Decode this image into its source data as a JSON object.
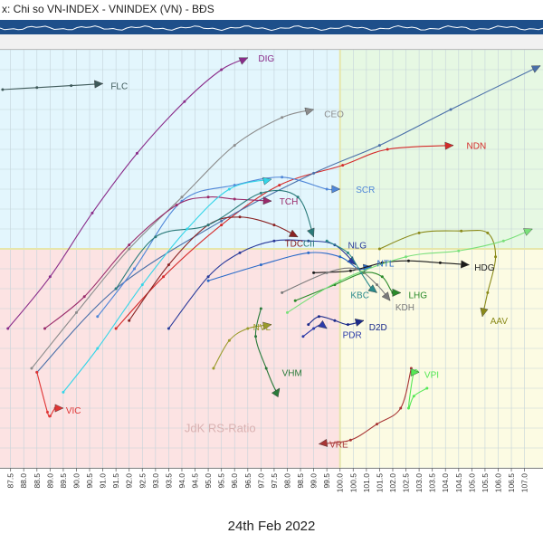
{
  "window": {
    "title": "x:  Chi so VN-INDEX - VNINDEX (VN) - BĐS"
  },
  "date_label": "24th Feb 2022",
  "watermark": "JdK RS-Ratio",
  "colors": {
    "strip_bg": "#1e4f8a",
    "strip_line": "#ffffff",
    "q_improving": "#e3f6fd",
    "q_leading": "#e6f8e3",
    "q_lagging": "#fce3e3",
    "q_weakening": "#fcfbe3",
    "grid": "#c4d3da",
    "centerline": "#e6e6aa"
  },
  "chart_data": {
    "type": "scatter",
    "subtype": "relative-rotation-graph",
    "title": "Chi so VN-INDEX - VNINDEX (VN) - BĐS",
    "xlabel": "JdK RS-Ratio",
    "ylabel": "",
    "xlim": [
      87.1,
      107.7
    ],
    "ylim": [
      94.5,
      105.0
    ],
    "center": [
      100.0,
      100.0
    ],
    "x_ticks": [
      87.5,
      88.0,
      88.5,
      89.0,
      89.5,
      90.0,
      90.5,
      91.0,
      91.5,
      92.0,
      92.5,
      93.0,
      93.5,
      94.0,
      94.5,
      95.0,
      95.5,
      96.0,
      96.5,
      97.0,
      97.5,
      98.0,
      98.5,
      99.0,
      99.5,
      100.0,
      100.5,
      101.0,
      101.5,
      102.0,
      102.5,
      103.0,
      103.5,
      104.0,
      104.5,
      105.0,
      105.5,
      106.0,
      106.5,
      107.0
    ],
    "x_tick_labels": [
      "87.5",
      "88.0",
      "88.5",
      "89.0",
      "89.5",
      "90.0",
      "90.5",
      "91.0",
      "91.5",
      "92.0",
      "92.5",
      "93.0",
      "93.5",
      "94.0",
      "94.5",
      "95.0",
      "95.5",
      "96.0",
      "96.5",
      "97.0",
      "97.5",
      "98.0",
      "98.5",
      "99.0",
      "99.5",
      "100.0",
      "100.5",
      "101.0",
      "101.5",
      "102.0",
      "102.5",
      "103.0",
      "103.5",
      "104.0",
      "104.5",
      "105.0",
      "105.5",
      "106.0",
      "106.5",
      "107.0"
    ],
    "series": [
      {
        "name": "FLC",
        "color": "#3f5a5a",
        "points": [
          [
            87.2,
            104.0
          ],
          [
            88.5,
            104.05
          ],
          [
            89.8,
            104.1
          ],
          [
            91.0,
            104.15
          ]
        ]
      },
      {
        "name": "DIG",
        "color": "#8a2c8a",
        "points": [
          [
            87.4,
            98.0
          ],
          [
            89.0,
            99.3
          ],
          [
            90.6,
            100.9
          ],
          [
            92.3,
            102.4
          ],
          [
            94.1,
            103.7
          ],
          [
            95.5,
            104.5
          ],
          [
            96.5,
            104.8
          ]
        ]
      },
      {
        "name": "CEO",
        "color": "#8c8c8c",
        "points": [
          [
            88.3,
            97.0
          ],
          [
            90.0,
            98.4
          ],
          [
            92.0,
            100.0
          ],
          [
            94.0,
            101.3
          ],
          [
            96.0,
            102.6
          ],
          [
            97.8,
            103.3
          ],
          [
            99.0,
            103.5
          ]
        ]
      },
      {
        "name": "NDN",
        "color": "#d42a2a",
        "points": [
          [
            91.5,
            98.0
          ],
          [
            93.3,
            99.3
          ],
          [
            95.5,
            100.6
          ],
          [
            97.7,
            101.6
          ],
          [
            100.1,
            102.1
          ],
          [
            101.8,
            102.5
          ],
          [
            104.3,
            102.6
          ]
        ]
      },
      {
        "name": "VN-line",
        "color": "#4a6fa8",
        "points": [
          [
            88.5,
            96.9
          ],
          [
            91.5,
            99.0
          ],
          [
            95.5,
            100.7
          ],
          [
            99.0,
            101.9
          ],
          [
            101.5,
            102.6
          ],
          [
            104.2,
            103.5
          ],
          [
            107.6,
            104.6
          ]
        ]
      },
      {
        "name": "SCR",
        "color": "#4f86d8",
        "points": [
          [
            90.8,
            98.3
          ],
          [
            92.2,
            99.5
          ],
          [
            94.0,
            101.2
          ],
          [
            96.0,
            101.6
          ],
          [
            97.8,
            101.8
          ],
          [
            99.5,
            101.5
          ],
          [
            100.0,
            101.5
          ]
        ]
      },
      {
        "name": "TCH",
        "color": "#992a6a",
        "points": [
          [
            88.8,
            98.0
          ],
          [
            90.3,
            98.8
          ],
          [
            92.0,
            100.1
          ],
          [
            93.8,
            101.1
          ],
          [
            95.0,
            101.3
          ],
          [
            96.0,
            101.25
          ],
          [
            97.4,
            101.2
          ]
        ]
      },
      {
        "name": "TDC",
        "color": "#8a2222",
        "points": [
          [
            92.0,
            98.2
          ],
          [
            93.5,
            99.6
          ],
          [
            95.0,
            100.6
          ],
          [
            96.2,
            100.8
          ],
          [
            97.5,
            100.6
          ],
          [
            98.4,
            100.3
          ]
        ]
      },
      {
        "name": "CII",
        "color": "#2a7a7a",
        "points": [
          [
            91.5,
            99.0
          ],
          [
            93.0,
            100.3
          ],
          [
            95.0,
            100.6
          ],
          [
            97.0,
            101.4
          ],
          [
            98.4,
            101.3
          ],
          [
            99.0,
            100.3
          ]
        ]
      },
      {
        "name": "NLG",
        "color": "#2a3a9a",
        "points": [
          [
            93.5,
            98.0
          ],
          [
            95.0,
            99.3
          ],
          [
            96.2,
            99.9
          ],
          [
            97.5,
            100.2
          ],
          [
            98.8,
            100.2
          ],
          [
            99.8,
            100.1
          ],
          [
            100.6,
            99.6
          ]
        ]
      },
      {
        "name": "NTL",
        "color": "#2a6ac8",
        "points": [
          [
            95.0,
            99.2
          ],
          [
            97.0,
            99.6
          ],
          [
            98.8,
            99.9
          ],
          [
            100.0,
            99.8
          ],
          [
            100.7,
            99.5
          ],
          [
            101.2,
            99.55
          ]
        ]
      },
      {
        "name": "HDG",
        "color": "#1a1a1a",
        "points": [
          [
            99.0,
            99.4
          ],
          [
            100.4,
            99.45
          ],
          [
            101.6,
            99.65
          ],
          [
            102.6,
            99.7
          ],
          [
            103.8,
            99.65
          ],
          [
            104.9,
            99.6
          ]
        ]
      },
      {
        "name": "AAV",
        "color": "#8a8a1a",
        "points": [
          [
            101.5,
            100.0
          ],
          [
            103.0,
            100.4
          ],
          [
            104.6,
            100.45
          ],
          [
            105.6,
            100.4
          ],
          [
            105.9,
            99.8
          ],
          [
            105.6,
            98.9
          ],
          [
            105.4,
            98.3
          ]
        ]
      },
      {
        "name": "LHG",
        "color": "#2a8a2a",
        "points": [
          [
            98.3,
            98.7
          ],
          [
            99.8,
            99.1
          ],
          [
            100.9,
            99.4
          ],
          [
            101.6,
            99.3
          ],
          [
            102.0,
            98.9
          ],
          [
            102.3,
            98.9
          ]
        ]
      },
      {
        "name": "KDH",
        "color": "#7a7a7a",
        "points": [
          [
            97.8,
            98.9
          ],
          [
            99.5,
            99.4
          ],
          [
            100.6,
            99.5
          ],
          [
            101.4,
            99.1
          ],
          [
            101.9,
            98.7
          ]
        ]
      },
      {
        "name": "KBC",
        "color": "#2a8a8a",
        "points": [
          [
            99.5,
            100.2
          ],
          [
            100.3,
            99.9
          ],
          [
            100.8,
            99.4
          ],
          [
            101.2,
            99.0
          ],
          [
            101.4,
            98.9
          ]
        ]
      },
      {
        "name": "NVL",
        "color": "#9a9a2a",
        "points": [
          [
            95.2,
            97.0
          ],
          [
            95.8,
            97.7
          ],
          [
            96.5,
            98.0
          ],
          [
            97.4,
            98.1
          ]
        ]
      },
      {
        "name": "D2D",
        "color": "#1a2a8a",
        "points": [
          [
            98.8,
            98.1
          ],
          [
            99.2,
            98.3
          ],
          [
            99.8,
            98.2
          ],
          [
            100.3,
            98.1
          ],
          [
            100.9,
            98.2
          ]
        ]
      },
      {
        "name": "PDR",
        "color": "#2a3aa8",
        "points": [
          [
            98.6,
            97.8
          ],
          [
            99.0,
            98.0
          ],
          [
            99.3,
            98.1
          ],
          [
            99.5,
            98.0
          ]
        ]
      },
      {
        "name": "VHM",
        "color": "#2a7a3a",
        "points": [
          [
            97.0,
            98.5
          ],
          [
            96.8,
            97.8
          ],
          [
            97.2,
            97.0
          ],
          [
            97.6,
            96.4
          ],
          [
            97.7,
            96.5
          ]
        ]
      },
      {
        "name": "VIC",
        "color": "#e03535",
        "points": [
          [
            88.5,
            96.9
          ],
          [
            88.9,
            95.9
          ],
          [
            89.0,
            95.8
          ],
          [
            89.2,
            96.0
          ],
          [
            89.5,
            96.0
          ]
        ]
      },
      {
        "name": "VRE",
        "color": "#a83535",
        "points": [
          [
            102.7,
            97.0
          ],
          [
            102.3,
            96.0
          ],
          [
            101.4,
            95.6
          ],
          [
            100.4,
            95.2
          ],
          [
            99.2,
            95.1
          ]
        ]
      },
      {
        "name": "VPI",
        "color": "#55e855",
        "points": [
          [
            103.3,
            96.5
          ],
          [
            102.8,
            96.3
          ],
          [
            102.6,
            96.0
          ],
          [
            102.8,
            96.9
          ],
          [
            103.0,
            96.9
          ]
        ]
      },
      {
        "name": "light-green",
        "color": "#7ae07a",
        "points": [
          [
            98.0,
            98.4
          ],
          [
            100.0,
            99.2
          ],
          [
            102.5,
            99.8
          ],
          [
            104.5,
            99.95
          ],
          [
            106.2,
            100.2
          ],
          [
            107.3,
            100.5
          ]
        ]
      },
      {
        "name": "cyan",
        "color": "#33d5e8",
        "points": [
          [
            89.5,
            96.4
          ],
          [
            90.8,
            97.5
          ],
          [
            92.5,
            99.1
          ],
          [
            94.2,
            100.5
          ],
          [
            95.8,
            101.5
          ],
          [
            97.4,
            101.75
          ]
        ]
      }
    ],
    "labels": [
      {
        "text": "FLC",
        "series": "FLC",
        "at": [
          91.3,
          104.1
        ]
      },
      {
        "text": "DIG",
        "series": "DIG",
        "at": [
          96.9,
          104.8
        ]
      },
      {
        "text": "CEO",
        "series": "CEO",
        "at": [
          99.4,
          103.4
        ]
      },
      {
        "text": "NDN",
        "series": "NDN",
        "at": [
          104.8,
          102.6
        ]
      },
      {
        "text": "SCR",
        "series": "SCR",
        "at": [
          100.6,
          101.5
        ]
      },
      {
        "text": "TCH",
        "series": "TCH",
        "at": [
          97.7,
          101.2
        ]
      },
      {
        "text": "TDC",
        "series": "TDC",
        "at": [
          97.9,
          100.15
        ]
      },
      {
        "text": "CII",
        "series": "CII",
        "at": [
          98.6,
          100.15
        ]
      },
      {
        "text": "NLG",
        "series": "NLG",
        "at": [
          100.3,
          100.1
        ]
      },
      {
        "text": "NTL",
        "series": "NTL",
        "at": [
          101.4,
          99.65
        ]
      },
      {
        "text": "HDG",
        "series": "HDG",
        "at": [
          105.1,
          99.55
        ]
      },
      {
        "text": "AAV",
        "series": "AAV",
        "at": [
          105.7,
          98.2
        ]
      },
      {
        "text": "LHG",
        "series": "LHG",
        "at": [
          102.6,
          98.85
        ]
      },
      {
        "text": "KDH",
        "series": "KDH",
        "at": [
          102.1,
          98.55
        ]
      },
      {
        "text": "KBC",
        "series": "KBC",
        "at": [
          100.4,
          98.85
        ]
      },
      {
        "text": "NVL",
        "series": "NVL",
        "at": [
          96.7,
          98.05
        ]
      },
      {
        "text": "D2D",
        "series": "D2D",
        "at": [
          101.1,
          98.05
        ]
      },
      {
        "text": "PDR",
        "series": "PDR",
        "at": [
          100.1,
          97.85
        ]
      },
      {
        "text": "VHM",
        "series": "VHM",
        "at": [
          97.8,
          96.9
        ]
      },
      {
        "text": "VIC",
        "series": "VIC",
        "at": [
          89.6,
          95.95
        ]
      },
      {
        "text": "VRE",
        "series": "VRE",
        "at": [
          99.6,
          95.1
        ]
      },
      {
        "text": "VPI",
        "series": "VPI",
        "at": [
          103.2,
          96.85
        ]
      }
    ]
  }
}
